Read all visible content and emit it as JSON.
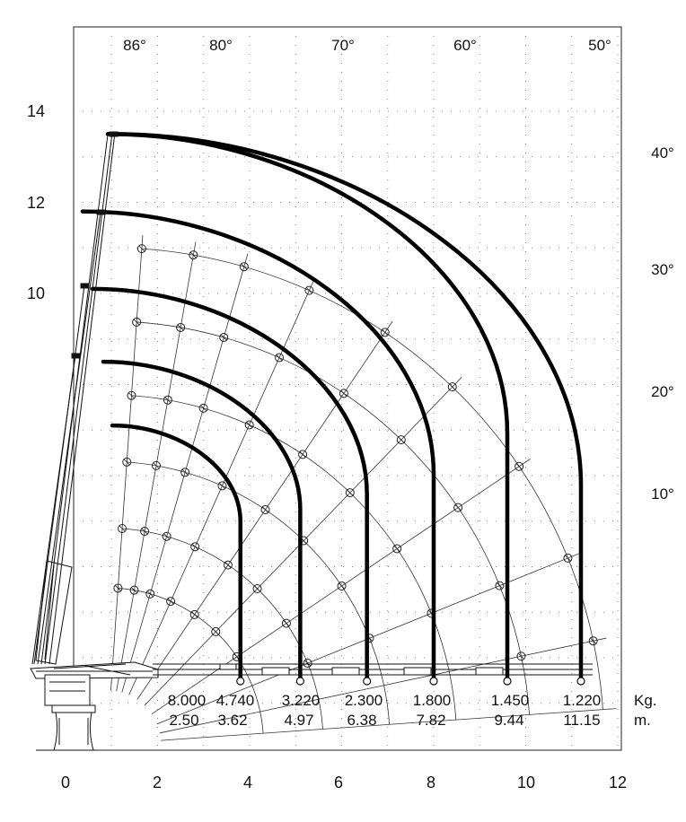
{
  "top_angle_labels": [
    "86°",
    "80°",
    "70°",
    "60°",
    "50°"
  ],
  "right_angle_labels": [
    "40°",
    "30°",
    "20°",
    "10°"
  ],
  "x_ticks": [
    "0",
    "2",
    "4",
    "6",
    "8",
    "10",
    "12"
  ],
  "y_ticks": [
    "14",
    "12",
    "10"
  ],
  "loads": [
    "8.000",
    "4.740",
    "3.220",
    "2.300",
    "1.800",
    "1.450",
    "1.220"
  ],
  "outreaches": [
    "2.50",
    "3.62",
    "4.97",
    "6.38",
    "7.82",
    "9.44",
    "11.15"
  ],
  "units": {
    "load": "Kg.",
    "reach": "m."
  },
  "colors": {
    "envelope": "#000000",
    "grid": "#888888"
  },
  "chart_data": {
    "type": "load-chart",
    "xlabel": "",
    "ylabel": "",
    "x_range": [
      0,
      12
    ],
    "y_range": [
      0,
      14
    ],
    "grid": true,
    "envelope_outreach_m": [
      3.8,
      5.1,
      6.55,
      8.0,
      9.6,
      11.2
    ],
    "envelope_top_height_m": [
      7.1,
      8.5,
      10.1,
      11.8,
      13.5,
      13.5
    ]
  }
}
